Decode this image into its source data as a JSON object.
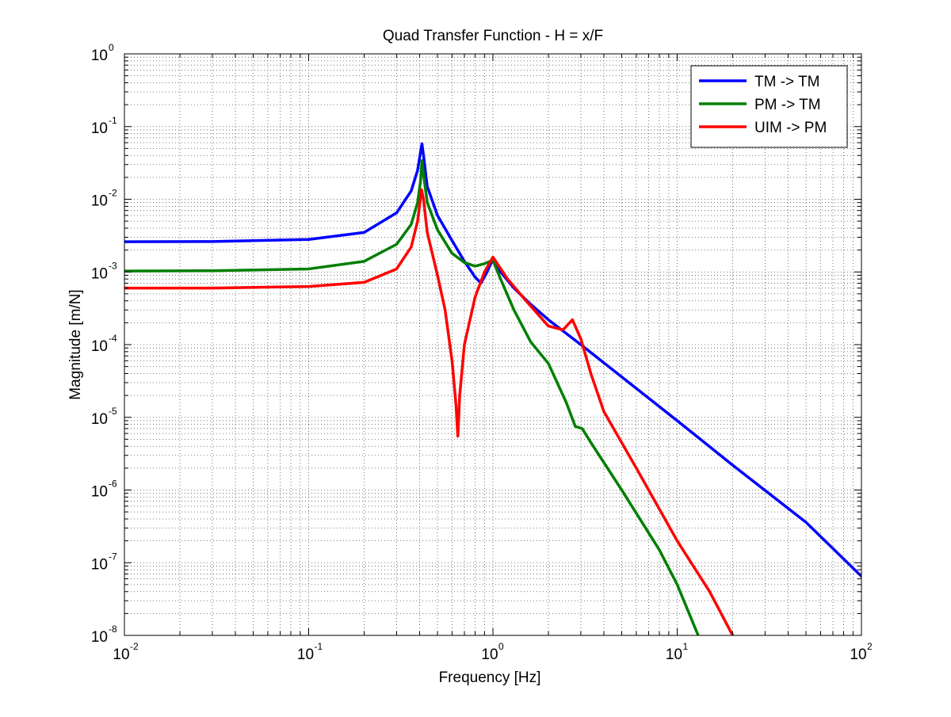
{
  "chart_data": {
    "type": "line",
    "title": "Quad Transfer Function - H = x/F",
    "xlabel": "Frequency [Hz]",
    "ylabel": "Magnitude [m/N]",
    "xscale": "log",
    "yscale": "log",
    "xlim": [
      0.01,
      100
    ],
    "ylim": [
      1e-08,
      1
    ],
    "grid": true,
    "legend_position": "top-right",
    "x_ticks": [
      {
        "value": 0.01,
        "base": "10",
        "exp": "-2"
      },
      {
        "value": 0.1,
        "base": "10",
        "exp": "-1"
      },
      {
        "value": 1,
        "base": "10",
        "exp": "0"
      },
      {
        "value": 10,
        "base": "10",
        "exp": "1"
      },
      {
        "value": 100,
        "base": "10",
        "exp": "2"
      }
    ],
    "y_ticks": [
      {
        "value": 1,
        "base": "10",
        "exp": "0"
      },
      {
        "value": 0.1,
        "base": "10",
        "exp": "-1"
      },
      {
        "value": 0.01,
        "base": "10",
        "exp": "-2"
      },
      {
        "value": 0.001,
        "base": "10",
        "exp": "-3"
      },
      {
        "value": 0.0001,
        "base": "10",
        "exp": "-4"
      },
      {
        "value": 1e-05,
        "base": "10",
        "exp": "-5"
      },
      {
        "value": 1e-06,
        "base": "10",
        "exp": "-6"
      },
      {
        "value": 1e-07,
        "base": "10",
        "exp": "-7"
      },
      {
        "value": 1e-08,
        "base": "10",
        "exp": "-8"
      }
    ],
    "series": [
      {
        "name": "TM -> TM",
        "color": "#0000ff",
        "points": [
          [
            0.01,
            0.0026
          ],
          [
            0.03,
            0.00262
          ],
          [
            0.1,
            0.0028
          ],
          [
            0.2,
            0.0035
          ],
          [
            0.3,
            0.0065
          ],
          [
            0.36,
            0.013
          ],
          [
            0.39,
            0.025
          ],
          [
            0.405,
            0.045
          ],
          [
            0.412,
            0.058
          ],
          [
            0.42,
            0.04
          ],
          [
            0.44,
            0.015
          ],
          [
            0.5,
            0.006
          ],
          [
            0.6,
            0.0027
          ],
          [
            0.7,
            0.0014
          ],
          [
            0.8,
            0.00085
          ],
          [
            0.86,
            0.0007
          ],
          [
            0.92,
            0.00095
          ],
          [
            1.0,
            0.0015
          ],
          [
            1.1,
            0.001
          ],
          [
            1.3,
            0.0006
          ],
          [
            1.6,
            0.00036
          ],
          [
            2.0,
            0.00022
          ],
          [
            3.0,
            0.0001
          ],
          [
            5.0,
            3.6e-05
          ],
          [
            10,
            9e-06
          ],
          [
            20,
            2.2e-06
          ],
          [
            50,
            3.6e-07
          ],
          [
            100,
            6.5e-08
          ]
        ]
      },
      {
        "name": "PM -> TM",
        "color": "#007f00",
        "points": [
          [
            0.01,
            0.00103
          ],
          [
            0.03,
            0.00104
          ],
          [
            0.1,
            0.0011
          ],
          [
            0.2,
            0.0014
          ],
          [
            0.3,
            0.0024
          ],
          [
            0.36,
            0.0045
          ],
          [
            0.39,
            0.009
          ],
          [
            0.405,
            0.018
          ],
          [
            0.412,
            0.034
          ],
          [
            0.42,
            0.022
          ],
          [
            0.44,
            0.009
          ],
          [
            0.5,
            0.0038
          ],
          [
            0.6,
            0.0018
          ],
          [
            0.7,
            0.00135
          ],
          [
            0.8,
            0.0012
          ],
          [
            0.9,
            0.0013
          ],
          [
            1.0,
            0.00145
          ],
          [
            1.1,
            0.0008
          ],
          [
            1.3,
            0.0003
          ],
          [
            1.6,
            0.00011
          ],
          [
            2.0,
            5.5e-05
          ],
          [
            2.5,
            1.6e-05
          ],
          [
            2.8,
            7.5e-06
          ],
          [
            3.05,
            7e-06
          ],
          [
            3.4,
            4.5e-06
          ],
          [
            5,
            1e-06
          ],
          [
            8,
            1.5e-07
          ],
          [
            10,
            5e-08
          ],
          [
            13,
            1e-08
          ]
        ]
      },
      {
        "name": "UIM -> PM",
        "color": "#ff0000",
        "points": [
          [
            0.01,
            0.0006
          ],
          [
            0.03,
            0.0006
          ],
          [
            0.1,
            0.00063
          ],
          [
            0.2,
            0.00072
          ],
          [
            0.3,
            0.0011
          ],
          [
            0.36,
            0.0022
          ],
          [
            0.39,
            0.005
          ],
          [
            0.41,
            0.0135
          ],
          [
            0.42,
            0.01
          ],
          [
            0.44,
            0.0035
          ],
          [
            0.5,
            0.0009
          ],
          [
            0.55,
            0.0003
          ],
          [
            0.6,
            6e-05
          ],
          [
            0.63,
            1.5e-05
          ],
          [
            0.645,
            5.5e-06
          ],
          [
            0.66,
            2e-05
          ],
          [
            0.7,
            0.0001
          ],
          [
            0.8,
            0.00045
          ],
          [
            0.9,
            0.001
          ],
          [
            1.0,
            0.0016
          ],
          [
            1.2,
            0.0008
          ],
          [
            1.5,
            0.00041
          ],
          [
            2.0,
            0.00018
          ],
          [
            2.4,
            0.00016
          ],
          [
            2.7,
            0.00022
          ],
          [
            3.0,
            0.00012
          ],
          [
            3.4,
            4e-05
          ],
          [
            4,
            1.2e-05
          ],
          [
            6,
            2e-06
          ],
          [
            10,
            2e-07
          ],
          [
            15,
            4e-08
          ],
          [
            20,
            1e-08
          ]
        ]
      }
    ]
  }
}
